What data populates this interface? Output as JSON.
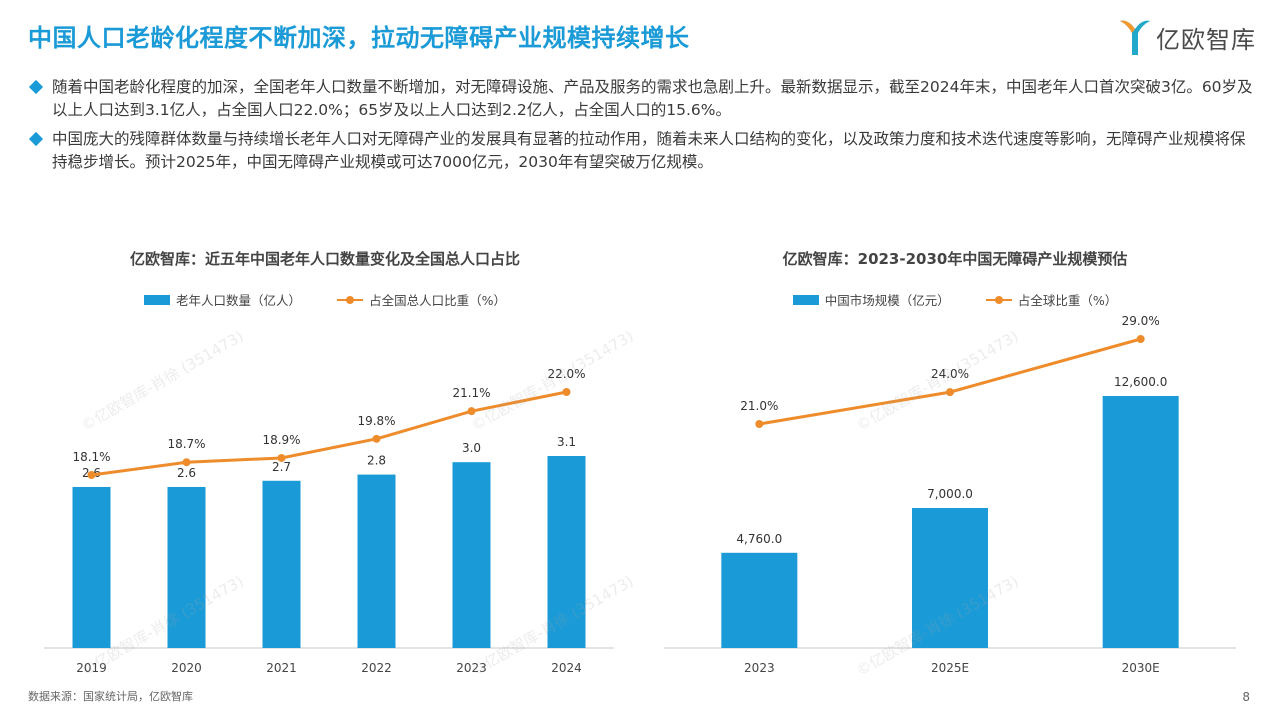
{
  "header": {
    "title": "中国人口老龄化程度不断加深，拉动无障碍产业规模持续增长",
    "logo_text": "亿欧智库"
  },
  "bullets": [
    "随着中国老龄化程度的加深，全国老年人口数量不断增加，对无障碍设施、产品及服务的需求也急剧上升。最新数据显示，截至2024年末，中国老年人口首次突破3亿。60岁及以上人口达到3.1亿人，占全国人口22.0%；65岁及以上人口达到2.2亿人，占全国人口的15.6%。",
    "中国庞大的残障群体数量与持续增长老年人口对无障碍产业的发展具有显著的拉动作用，随着未来人口结构的变化，以及政策力度和技术迭代速度等影响，无障碍产业规模将保持稳步增长。预计2025年，中国无障碍产业规模或可达7000亿元，2030年有望突破万亿规模。"
  ],
  "watermark_text": "©亿欧智库-肖徐 (351473)",
  "chart_data": [
    {
      "type": "bar",
      "title": "亿欧智库：近五年中国老年人口数量变化及全国总人口占比",
      "categories": [
        "2019",
        "2020",
        "2021",
        "2022",
        "2023",
        "2024"
      ],
      "series": [
        {
          "name": "老年人口数量（亿人）",
          "kind": "bar",
          "values": [
            2.6,
            2.6,
            2.7,
            2.8,
            3.0,
            3.1
          ],
          "labels": [
            "2.6",
            "2.6",
            "2.7",
            "2.8",
            "3.0",
            "3.1"
          ],
          "color": "#1a9ad6"
        },
        {
          "name": "占全国总人口比重（%）",
          "kind": "line",
          "values": [
            18.1,
            18.7,
            18.9,
            19.8,
            21.1,
            22.0
          ],
          "labels": [
            "18.1%",
            "18.7%",
            "18.9%",
            "19.8%",
            "21.1%",
            "22.0%"
          ],
          "color": "#ee8c2b"
        }
      ],
      "legend": "top-center",
      "grid": false
    },
    {
      "type": "bar",
      "title": "亿欧智库：2023-2030年中国无障碍产业规模预估",
      "categories": [
        "2023",
        "2025E",
        "2030E"
      ],
      "series": [
        {
          "name": "中国市场规模（亿元）",
          "kind": "bar",
          "values": [
            4760.0,
            7000.0,
            12600.0
          ],
          "labels": [
            "4,760.0",
            "7,000.0",
            "12,600.0"
          ],
          "color": "#1a9ad6"
        },
        {
          "name": "占全球比重（%）",
          "kind": "line",
          "values": [
            21.0,
            24.0,
            29.0
          ],
          "labels": [
            "21.0%",
            "24.0%",
            "29.0%"
          ],
          "color": "#ee8c2b"
        }
      ],
      "legend": "top-center",
      "grid": false
    }
  ],
  "footer": {
    "source": "数据来源：国家统计局，亿欧智库",
    "page_number": "8"
  }
}
